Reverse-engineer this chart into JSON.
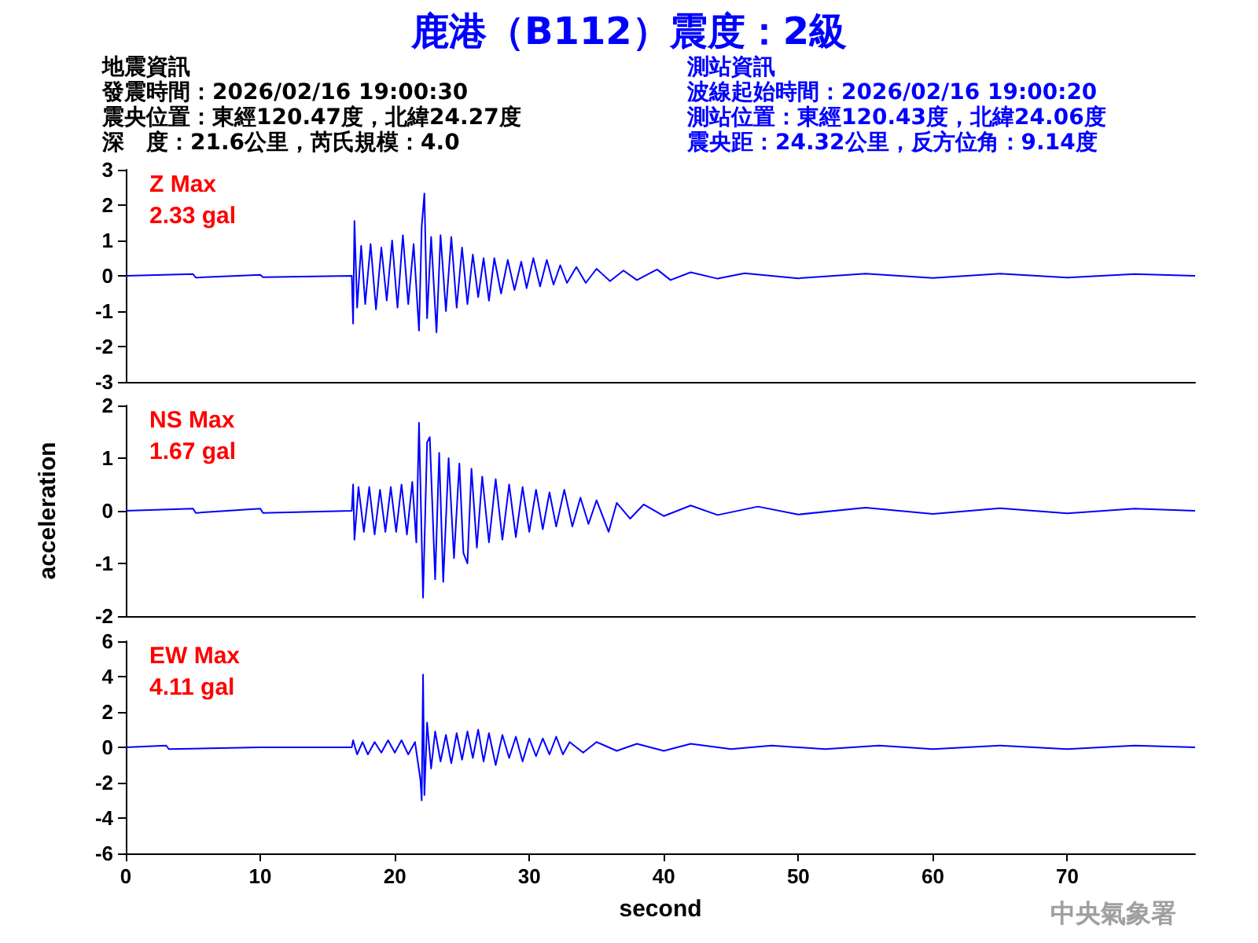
{
  "chart_data": [
    {
      "type": "line",
      "title": "鹿港（B112）震度：2級",
      "annotations": [
        "地震資訊",
        "發震時間：2026/02/16 19:00:30",
        "震央位置：東經120.47度，北緯24.27度",
        "深　度：21.6公里，芮氏規模：4.0",
        "測站資訊",
        "波線起始時間：2026/02/16 19:00:20",
        "測站位置：東經120.43度，北緯24.06度",
        "震央距：24.32公里，反方位角：9.14度",
        "Z Max",
        "2.33 gal"
      ],
      "x": [
        0,
        5,
        5.2,
        10,
        10.2,
        16.8,
        16.9,
        17.0,
        17.2,
        17.5,
        17.8,
        18.2,
        18.6,
        19.0,
        19.4,
        19.8,
        20.2,
        20.6,
        21.0,
        21.4,
        21.8,
        22.0,
        22.2,
        22.4,
        22.7,
        23.1,
        23.4,
        23.8,
        24.2,
        24.6,
        25.0,
        25.4,
        25.8,
        26.2,
        26.6,
        27.0,
        27.4,
        27.9,
        28.4,
        28.9,
        29.4,
        29.8,
        30.3,
        30.8,
        31.3,
        31.8,
        32.3,
        32.8,
        33.5,
        34.2,
        35.0,
        36,
        37,
        38,
        39.5,
        40.5,
        42,
        44,
        46,
        50,
        55,
        60,
        65,
        70,
        75,
        79.5
      ],
      "series": [
        {
          "color": "#0000ff",
          "values": [
            0,
            0.05,
            -0.05,
            0.03,
            -0.04,
            0,
            -1.35,
            1.55,
            -0.9,
            0.85,
            -0.8,
            0.9,
            -0.95,
            0.8,
            -0.7,
            1.0,
            -0.9,
            1.15,
            -0.8,
            0.9,
            -1.55,
            1.4,
            2.33,
            -1.2,
            1.1,
            -1.6,
            1.15,
            -1.0,
            1.1,
            -0.9,
            0.8,
            -0.8,
            0.6,
            -0.6,
            0.5,
            -0.7,
            0.5,
            -0.5,
            0.45,
            -0.4,
            0.4,
            -0.35,
            0.5,
            -0.3,
            0.45,
            -0.25,
            0.3,
            -0.2,
            0.25,
            -0.2,
            0.2,
            -0.15,
            0.15,
            -0.12,
            0.18,
            -0.12,
            0.1,
            -0.08,
            0.07,
            -0.07,
            0.06,
            -0.06,
            0.06,
            -0.05,
            0.05,
            0
          ]
        }
      ],
      "xlim": [
        0,
        79.5
      ],
      "ylim": [
        -3,
        3
      ],
      "yticks": [
        -3,
        -2,
        -1,
        0,
        1,
        2,
        3
      ],
      "tick_labels": "y"
    },
    {
      "type": "line",
      "ylabel": "acceleration",
      "annotations": [
        "NS Max",
        "1.67 gal"
      ],
      "x": [
        0,
        5,
        5.2,
        10,
        10.2,
        16.8,
        16.9,
        17.0,
        17.3,
        17.7,
        18.1,
        18.5,
        18.9,
        19.3,
        19.7,
        20.1,
        20.5,
        20.9,
        21.3,
        21.6,
        21.8,
        22.1,
        22.4,
        22.6,
        23.0,
        23.3,
        23.6,
        24.0,
        24.4,
        24.8,
        25.1,
        25.4,
        25.7,
        26.1,
        26.5,
        27.0,
        27.5,
        28.0,
        28.5,
        29.0,
        29.5,
        30.0,
        30.5,
        31.0,
        31.5,
        32.0,
        32.6,
        33.2,
        33.8,
        34.4,
        35.0,
        35.6,
        35.9,
        36.5,
        37.5,
        38.5,
        40,
        42,
        44,
        47,
        50,
        55,
        60,
        65,
        70,
        75,
        79.5
      ],
      "series": [
        {
          "color": "#0000ff",
          "values": [
            0,
            0.04,
            -0.04,
            0.04,
            -0.04,
            0,
            0.5,
            -0.55,
            0.45,
            -0.4,
            0.45,
            -0.45,
            0.4,
            -0.4,
            0.45,
            -0.4,
            0.5,
            -0.45,
            0.55,
            -0.6,
            1.67,
            -1.65,
            1.3,
            1.4,
            -1.3,
            1.1,
            -1.35,
            1.0,
            -0.9,
            0.9,
            -0.8,
            -1.0,
            0.8,
            -0.7,
            0.65,
            -0.6,
            0.6,
            -0.55,
            0.5,
            -0.5,
            0.45,
            -0.4,
            0.4,
            -0.35,
            0.35,
            -0.3,
            0.4,
            -0.3,
            0.25,
            -0.25,
            0.2,
            -0.2,
            -0.4,
            0.15,
            -0.15,
            0.12,
            -0.1,
            0.1,
            -0.08,
            0.08,
            -0.07,
            0.06,
            -0.06,
            0.05,
            -0.05,
            0.04,
            0
          ]
        }
      ],
      "xlim": [
        0,
        79.5
      ],
      "ylim": [
        -2,
        2
      ],
      "yticks": [
        -2,
        -1,
        0,
        1,
        2
      ],
      "tick_labels": "y"
    },
    {
      "type": "line",
      "xlabel": "second",
      "annotations": [
        "EW Max",
        "4.11 gal",
        "中央氣象署"
      ],
      "x": [
        0,
        3,
        3.2,
        10,
        16.8,
        16.9,
        17.2,
        17.6,
        18.0,
        18.5,
        19.0,
        19.5,
        20.0,
        20.5,
        21.0,
        21.5,
        21.9,
        22.0,
        22.1,
        22.2,
        22.4,
        22.7,
        23.0,
        23.4,
        23.8,
        24.2,
        24.6,
        25.0,
        25.4,
        25.8,
        26.2,
        26.6,
        27.0,
        27.5,
        28.0,
        28.5,
        29.0,
        29.5,
        30.0,
        30.5,
        31.0,
        31.5,
        32.0,
        32.5,
        33.0,
        34.0,
        35.0,
        36.5,
        38,
        40,
        42,
        45,
        48,
        52,
        56,
        60,
        65,
        70,
        75,
        79.5
      ],
      "series": [
        {
          "color": "#0000ff",
          "values": [
            0,
            0.1,
            -0.1,
            0,
            0,
            0.4,
            -0.4,
            0.3,
            -0.4,
            0.3,
            -0.3,
            0.4,
            -0.3,
            0.4,
            -0.4,
            0.3,
            -1.8,
            -3.0,
            4.11,
            -2.7,
            1.4,
            -1.2,
            0.9,
            -0.8,
            0.7,
            -0.9,
            0.8,
            -0.7,
            0.9,
            -0.6,
            1.0,
            -0.8,
            0.8,
            -1.0,
            0.7,
            -0.6,
            0.6,
            -0.8,
            0.5,
            -0.5,
            0.5,
            -0.4,
            0.6,
            -0.4,
            0.3,
            -0.3,
            0.3,
            -0.2,
            0.2,
            -0.2,
            0.2,
            -0.1,
            0.1,
            -0.1,
            0.1,
            -0.1,
            0.1,
            -0.1,
            0.1,
            0
          ]
        }
      ],
      "xlim": [
        0,
        79.5
      ],
      "xticks": [
        0,
        10,
        20,
        30,
        40,
        50,
        60,
        70
      ],
      "ylim": [
        -6,
        6
      ],
      "yticks": [
        -6,
        -4,
        -2,
        0,
        2,
        4,
        6
      ]
    }
  ]
}
